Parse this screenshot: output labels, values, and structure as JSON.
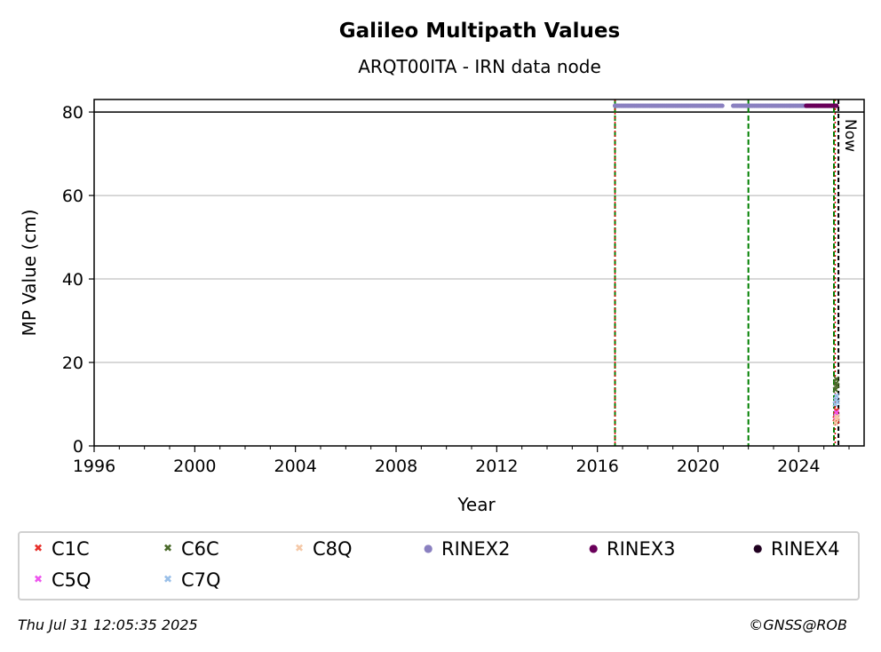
{
  "chart_data": {
    "type": "scatter",
    "title": "Galileo Multipath Values",
    "subtitle": "ARQT00ITA - IRN data node",
    "xlabel": "Year",
    "ylabel": "MP Value (cm)",
    "xlim": [
      1996,
      2026.6
    ],
    "ylim": [
      0,
      83
    ],
    "x_ticks": [
      "1996",
      "2000",
      "2004",
      "2008",
      "2012",
      "2016",
      "2020",
      "2024"
    ],
    "y_ticks": [
      "0",
      "20",
      "40",
      "60",
      "80"
    ],
    "grid": "horizontal",
    "reference_line_y": 80,
    "now_label": "Now",
    "now_x": 2025.58,
    "red_dotted_lines_x": [
      2016.7,
      2025.45
    ],
    "green_dashed_lines_x": [
      2016.7,
      2022.0,
      2025.4
    ],
    "series": [
      {
        "name": "C1C",
        "marker": "x",
        "color": "#e8302a",
        "points": [
          [
            2025.45,
            6.5
          ],
          [
            2025.47,
            7.5
          ],
          [
            2025.5,
            8.5
          ],
          [
            2025.52,
            6.0
          ]
        ]
      },
      {
        "name": "C5Q",
        "marker": "x",
        "color": "#ee55ee",
        "points": [
          [
            2025.48,
            7.0
          ],
          [
            2025.5,
            8.0
          ]
        ]
      },
      {
        "name": "C6C",
        "marker": "x",
        "color": "#4a6a2a",
        "points": [
          [
            2025.46,
            13.5
          ],
          [
            2025.48,
            15.0
          ],
          [
            2025.5,
            16.0
          ],
          [
            2025.52,
            14.5
          ]
        ]
      },
      {
        "name": "C7Q",
        "marker": "x",
        "color": "#99bfe8",
        "points": [
          [
            2025.45,
            10.0
          ],
          [
            2025.47,
            11.0
          ],
          [
            2025.5,
            12.0
          ],
          [
            2025.53,
            10.5
          ]
        ]
      },
      {
        "name": "C8Q",
        "marker": "x",
        "color": "#f5c9a8",
        "points": [
          [
            2025.47,
            5.5
          ],
          [
            2025.5,
            6.5
          ],
          [
            2025.53,
            7.0
          ]
        ]
      },
      {
        "name": "RINEX2",
        "marker": "o",
        "color": "#8a80c0",
        "segments": [
          [
            2016.7,
            2021.0
          ],
          [
            2021.4,
            2025.5
          ]
        ],
        "value": 81.5
      },
      {
        "name": "RINEX3",
        "marker": "o",
        "color": "#6a005a",
        "segments": [
          [
            2024.3,
            2025.55
          ]
        ],
        "value": 81.5
      },
      {
        "name": "RINEX4",
        "marker": "o",
        "color": "#200020",
        "segments": [],
        "value": 81.5
      }
    ],
    "legend": {
      "placement": "bottom",
      "entries": [
        {
          "label": "C1C",
          "marker": "x",
          "color": "#e8302a"
        },
        {
          "label": "C6C",
          "marker": "x",
          "color": "#4a6a2a"
        },
        {
          "label": "C8Q",
          "marker": "x",
          "color": "#f5c9a8"
        },
        {
          "label": "RINEX2",
          "marker": "o",
          "color": "#8a80c0"
        },
        {
          "label": "RINEX3",
          "marker": "o",
          "color": "#6a005a"
        },
        {
          "label": "RINEX4",
          "marker": "o",
          "color": "#200020"
        },
        {
          "label": "C5Q",
          "marker": "x",
          "color": "#ee55ee"
        },
        {
          "label": "C7Q",
          "marker": "x",
          "color": "#99bfe8"
        }
      ]
    }
  },
  "footer": {
    "timestamp": "Thu Jul 31 12:05:35 2025",
    "credit": "©GNSS@ROB"
  }
}
